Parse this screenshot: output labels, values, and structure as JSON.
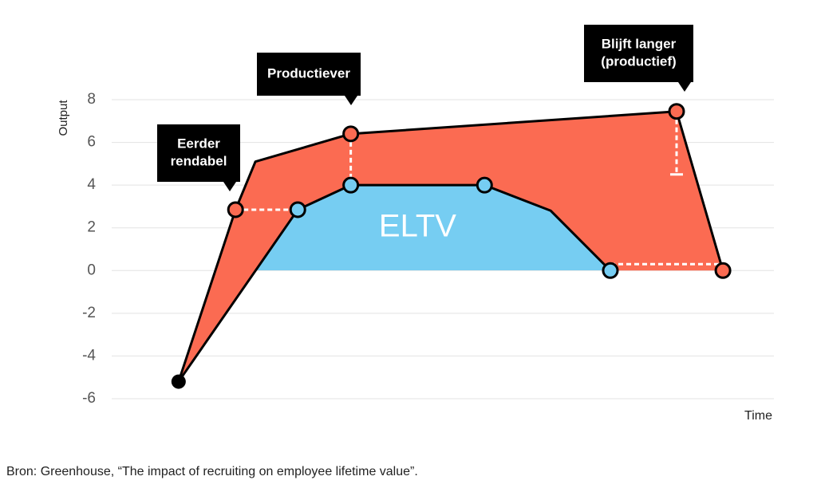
{
  "chart_data": {
    "type": "line",
    "y_label": "Output",
    "x_label": "Time",
    "xlim": [
      0,
      100
    ],
    "ylim": [
      -6,
      8
    ],
    "yticks": [
      -6,
      -4,
      -2,
      0,
      2,
      4,
      6,
      8
    ],
    "grid": true,
    "series": [
      {
        "color": "#fb6b52",
        "x": [
          10.1,
          18.7,
          21.7,
          36.1,
          85.3,
          92.3
        ],
        "values": [
          -5.2,
          2.85,
          5.1,
          6.4,
          7.45,
          0
        ],
        "markers": [
          false,
          true,
          false,
          true,
          true,
          true
        ]
      },
      {
        "color": "#76cdf2",
        "x": [
          10.1,
          28.1,
          36.1,
          56.3,
          66.3,
          75.3
        ],
        "values": [
          -5.2,
          2.85,
          4,
          4,
          2.8,
          0
        ],
        "markers": [
          false,
          true,
          true,
          true,
          false,
          true
        ]
      }
    ],
    "area_label": "ELTV",
    "annotations": [
      {
        "lines": [
          "Eerder",
          "rendabel"
        ]
      },
      {
        "lines": [
          "Productiever"
        ]
      },
      {
        "lines": [
          "Blijft langer",
          "(productief)"
        ]
      }
    ],
    "source": "Bron: Greenhouse, “The impact of recruiting on employee lifetime value”."
  }
}
